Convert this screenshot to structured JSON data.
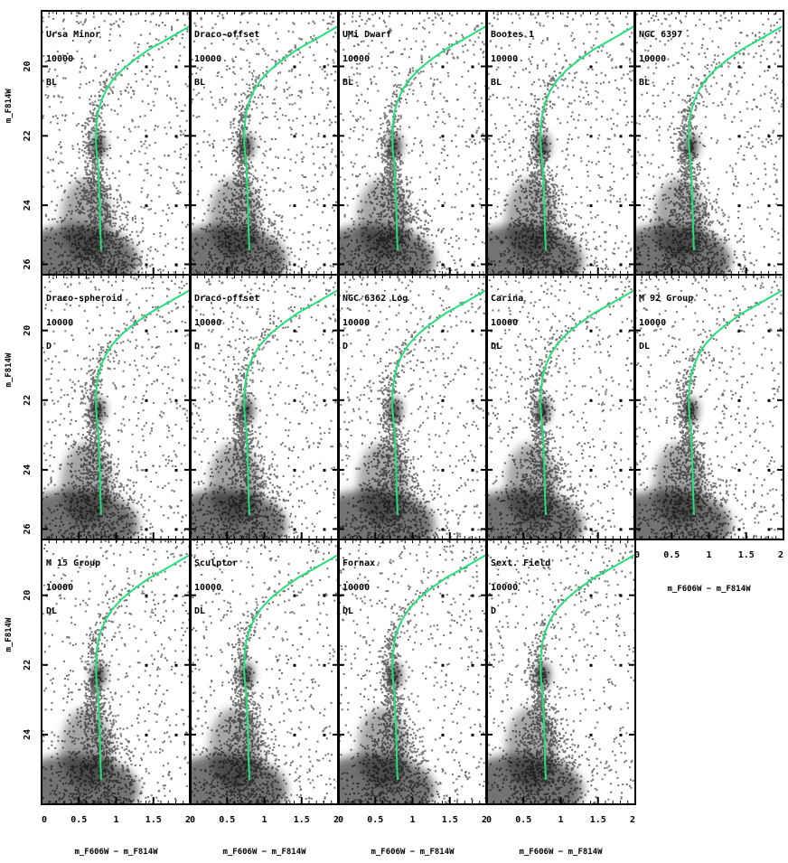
{
  "chart_data": {
    "type": "scatter",
    "layout": {
      "rows": 3,
      "cols": 5,
      "shared_axes": true
    },
    "xlim": [
      0,
      2
    ],
    "ylims": [
      [
        18.4,
        26.0
      ],
      [
        18.4,
        26.0
      ],
      [
        18.4,
        26.0
      ]
    ],
    "x_ticks": [
      0,
      0.5,
      1,
      1.5,
      2
    ],
    "x_tick_labels": [
      "0",
      "0.5",
      "1",
      "1.5",
      "2"
    ],
    "row_y_ticks": [
      {
        "values": [
          20,
          22,
          24,
          25.7
        ],
        "labels": [
          "20",
          "22",
          "24",
          "26"
        ]
      },
      {
        "values": [
          20,
          22,
          24,
          25.7
        ],
        "labels": [
          "20",
          "22",
          "24",
          "26"
        ]
      },
      {
        "values": [
          20,
          22,
          24
        ],
        "labels": [
          "20",
          "22",
          "24"
        ]
      }
    ],
    "xlabel": "m_F606W − m_F814W",
    "ylabel": "m_F814W",
    "isochrone": {
      "color": "#22e07a",
      "x": [
        0.8,
        0.79,
        0.78,
        0.77,
        0.76,
        0.74,
        0.73,
        0.73,
        0.74,
        0.76,
        0.8,
        0.86,
        0.95,
        1.08,
        1.25,
        1.45,
        1.7,
        1.9,
        1.98
      ],
      "y": [
        25.3,
        24.8,
        24.0,
        23.4,
        22.9,
        22.5,
        22.2,
        21.9,
        21.6,
        21.3,
        21.0,
        20.7,
        20.4,
        20.1,
        19.8,
        19.5,
        19.2,
        18.95,
        18.85
      ]
    },
    "panels": [
      {
        "name": "Ursa Minor",
        "count": "10000",
        "tag": "BL"
      },
      {
        "name": "Draco-offset",
        "count": "10000",
        "tag": "BL"
      },
      {
        "name": "UMi Dwarf",
        "count": "10000",
        "tag": "BL"
      },
      {
        "name": "Bootes 1",
        "count": "10000",
        "tag": "BL"
      },
      {
        "name": "NGC 6397",
        "count": "10000",
        "tag": "BL"
      },
      {
        "name": "Draco-spheroid",
        "count": "10000",
        "tag": "D"
      },
      {
        "name": "Draco-offset",
        "count": "10000",
        "tag": "D"
      },
      {
        "name": "NGC 6362 Log",
        "count": "10000",
        "tag": "D"
      },
      {
        "name": "Carina",
        "count": "10000",
        "tag": "DL"
      },
      {
        "name": "M 92 Group",
        "count": "10000",
        "tag": "DL"
      },
      {
        "name": "M 15 Group",
        "count": "10000",
        "tag": "DL"
      },
      {
        "name": "Sculptor",
        "count": "10000",
        "tag": "DL"
      },
      {
        "name": "Fornax",
        "count": "10000",
        "tag": "DL"
      },
      {
        "name": "Sext. Field",
        "count": "10000",
        "tag": "D"
      }
    ]
  }
}
